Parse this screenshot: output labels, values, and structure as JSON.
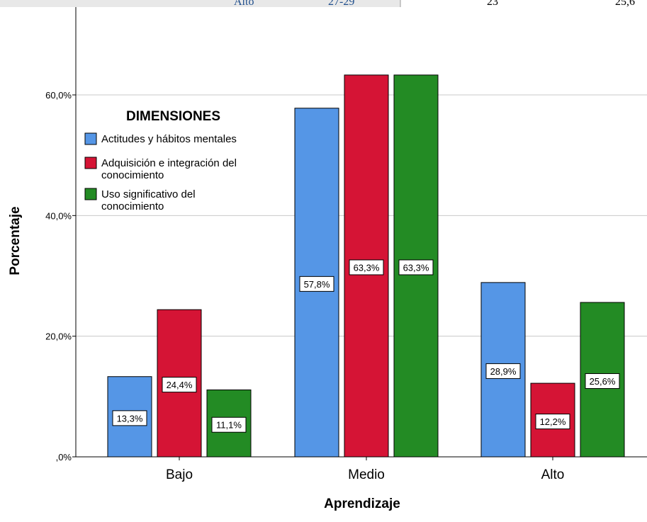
{
  "table_fragment": {
    "cells": [
      "Alto",
      "27-29",
      "23",
      "25,6"
    ],
    "colors": {
      "cell_bg": "#e8e8e8",
      "text_blue": "#1f4e8c"
    }
  },
  "chart_data": {
    "type": "bar",
    "title": "",
    "xlabel": "Aprendizaje",
    "ylabel": "Porcentaje",
    "categories": [
      "Bajo",
      "Medio",
      "Alto"
    ],
    "ylim": [
      0,
      75
    ],
    "yticks": [
      0,
      20,
      40,
      60
    ],
    "ytick_labels": [
      ",0%",
      "20,0%",
      "40,0%",
      "60,0%"
    ],
    "grid": true,
    "legend_position": "upper-left inside",
    "legend": {
      "title": "DIMENSIONES",
      "entries": [
        {
          "lines": [
            "Actitudes y hábitos mentales"
          ]
        },
        {
          "lines": [
            "Adquisición e integración del",
            "conocimiento"
          ]
        },
        {
          "lines": [
            "Uso significativo del",
            "conocimiento"
          ]
        }
      ]
    },
    "series": [
      {
        "name": "Actitudes y hábitos mentales",
        "color": "#5596e6",
        "values": [
          13.3,
          57.8,
          28.9
        ],
        "labels": [
          "13,3%",
          "57,8%",
          "28,9%"
        ]
      },
      {
        "name": "Adquisición e integración del conocimiento",
        "color": "#d51435",
        "values": [
          24.4,
          63.3,
          12.2
        ],
        "labels": [
          "24,4%",
          "63,3%",
          "12,2%"
        ]
      },
      {
        "name": "Uso significativo del conocimiento",
        "color": "#238b24",
        "values": [
          11.1,
          63.3,
          25.6
        ],
        "labels": [
          "11,1%",
          "63,3%",
          "25,6%"
        ]
      }
    ]
  }
}
